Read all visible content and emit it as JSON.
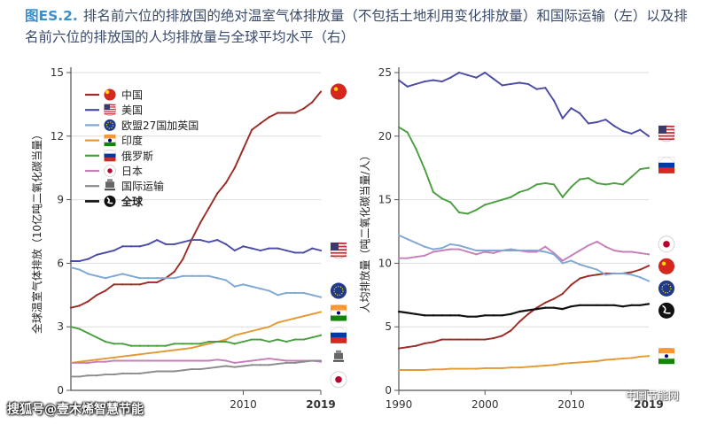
{
  "title": {
    "tag": "图ES.2.",
    "text": "排名前六位的排放国的绝对温室气体排放量（不包括土地利用变化排放量）和国际运输（左）以及排名前六位的排放国的人均排放量与全球平均水平（右）"
  },
  "watermark": {
    "left": "搜狐号@壹木烯智慧节能",
    "right": "中国节能网"
  },
  "colors": {
    "china": "#9b2b24",
    "usa": "#4b4ba6",
    "eu27uk": "#7fa8d4",
    "india": "#e29a35",
    "russia": "#4a9e3f",
    "japan": "#c77fb8",
    "intl": "#8c8c8c",
    "world": "#111111",
    "axis": "#555555",
    "grid": "#dddddd"
  },
  "chart_data": [
    {
      "type": "line",
      "panel": "left",
      "ylabel": "全球温室气体排放（10亿吨二氧化碳当量）",
      "ylim": [
        0,
        15
      ],
      "yticks": [
        "0",
        "3",
        "6",
        "9",
        "12",
        "15"
      ],
      "xlim": [
        1990,
        2019
      ],
      "xticks": [
        "2010",
        "2019"
      ],
      "xtick_values": [
        2010,
        2019
      ],
      "grid": true,
      "legend_position": "top-left",
      "legend": [
        {
          "key": "china",
          "label": "中国",
          "icon": "china-flag-icon"
        },
        {
          "key": "usa",
          "label": "美国",
          "icon": "usa-flag-icon"
        },
        {
          "key": "eu27uk",
          "label": "欧盟27国加英国",
          "icon": "eu-flag-icon"
        },
        {
          "key": "india",
          "label": "印度",
          "icon": "india-flag-icon"
        },
        {
          "key": "russia",
          "label": "俄罗斯",
          "icon": "russia-flag-icon"
        },
        {
          "key": "japan",
          "label": "日本",
          "icon": "japan-flag-icon"
        },
        {
          "key": "intl",
          "label": "国际运输",
          "icon": "ship-icon"
        },
        {
          "key": "world",
          "label": "全球",
          "icon": "globe-icon"
        }
      ],
      "end_icons": [
        {
          "icon": "china-flag-icon",
          "value": 14.1
        },
        {
          "icon": "usa-flag-icon",
          "value": 6.6
        },
        {
          "icon": "eu-flag-icon",
          "value": 4.7
        },
        {
          "icon": "india-flag-icon",
          "value": 3.7
        },
        {
          "icon": "russia-flag-icon",
          "value": 2.6
        },
        {
          "icon": "ship-icon",
          "value": 1.7
        },
        {
          "icon": "japan-flag-icon",
          "value": 0.7
        }
      ],
      "x": [
        1990,
        1991,
        1992,
        1993,
        1994,
        1995,
        1996,
        1997,
        1998,
        1999,
        2000,
        2001,
        2002,
        2003,
        2004,
        2005,
        2006,
        2007,
        2008,
        2009,
        2010,
        2011,
        2012,
        2013,
        2014,
        2015,
        2016,
        2017,
        2018,
        2019
      ],
      "series": [
        {
          "key": "china",
          "name": "中国",
          "values": [
            3.9,
            4.0,
            4.2,
            4.5,
            4.7,
            5.0,
            5.0,
            5.0,
            5.0,
            5.1,
            5.1,
            5.3,
            5.6,
            6.2,
            7.1,
            7.9,
            8.6,
            9.3,
            9.8,
            10.5,
            11.4,
            12.3,
            12.6,
            12.9,
            13.1,
            13.1,
            13.1,
            13.3,
            13.6,
            14.1
          ]
        },
        {
          "key": "usa",
          "name": "美国",
          "values": [
            6.1,
            6.1,
            6.2,
            6.4,
            6.5,
            6.6,
            6.8,
            6.8,
            6.8,
            6.9,
            7.1,
            6.9,
            6.9,
            7.0,
            7.1,
            7.1,
            7.0,
            7.1,
            6.9,
            6.6,
            6.8,
            6.7,
            6.6,
            6.7,
            6.7,
            6.6,
            6.5,
            6.5,
            6.7,
            6.6
          ]
        },
        {
          "key": "eu27uk",
          "name": "欧盟27国加英国",
          "values": [
            5.8,
            5.7,
            5.5,
            5.4,
            5.3,
            5.4,
            5.5,
            5.4,
            5.3,
            5.3,
            5.3,
            5.3,
            5.3,
            5.4,
            5.4,
            5.4,
            5.4,
            5.3,
            5.2,
            4.9,
            5.0,
            4.9,
            4.8,
            4.7,
            4.5,
            4.6,
            4.6,
            4.6,
            4.5,
            4.4
          ]
        },
        {
          "key": "india",
          "name": "印度",
          "values": [
            1.3,
            1.35,
            1.4,
            1.45,
            1.5,
            1.55,
            1.6,
            1.65,
            1.7,
            1.75,
            1.8,
            1.85,
            1.9,
            1.95,
            2.0,
            2.1,
            2.2,
            2.3,
            2.4,
            2.6,
            2.7,
            2.8,
            2.9,
            3.0,
            3.2,
            3.3,
            3.4,
            3.5,
            3.6,
            3.7
          ]
        },
        {
          "key": "russia",
          "name": "俄罗斯",
          "values": [
            3.0,
            2.9,
            2.7,
            2.5,
            2.3,
            2.2,
            2.2,
            2.1,
            2.1,
            2.1,
            2.1,
            2.1,
            2.2,
            2.2,
            2.2,
            2.2,
            2.3,
            2.3,
            2.3,
            2.2,
            2.3,
            2.4,
            2.4,
            2.3,
            2.4,
            2.3,
            2.4,
            2.4,
            2.5,
            2.6
          ]
        },
        {
          "key": "japan",
          "name": "日本",
          "values": [
            1.3,
            1.3,
            1.3,
            1.35,
            1.35,
            1.4,
            1.4,
            1.4,
            1.4,
            1.4,
            1.4,
            1.4,
            1.4,
            1.4,
            1.4,
            1.4,
            1.4,
            1.45,
            1.4,
            1.3,
            1.35,
            1.4,
            1.45,
            1.5,
            1.45,
            1.4,
            1.4,
            1.4,
            1.4,
            1.35
          ]
        },
        {
          "key": "intl",
          "name": "国际运输",
          "values": [
            0.65,
            0.65,
            0.7,
            0.7,
            0.75,
            0.75,
            0.8,
            0.8,
            0.8,
            0.85,
            0.9,
            0.9,
            0.9,
            0.95,
            1.0,
            1.0,
            1.05,
            1.1,
            1.15,
            1.1,
            1.15,
            1.2,
            1.2,
            1.2,
            1.25,
            1.3,
            1.3,
            1.35,
            1.4,
            1.4
          ]
        }
      ]
    },
    {
      "type": "line",
      "panel": "right",
      "ylabel": "人均排放量（吨二氧化碳当量/人）",
      "ylim": [
        0,
        25
      ],
      "yticks": [
        "0",
        "5",
        "10",
        "15",
        "20",
        "25"
      ],
      "xlim": [
        1990,
        2019
      ],
      "xticks": [
        "1990",
        "2000",
        "2010",
        "2019"
      ],
      "xtick_values": [
        1990,
        2000,
        2010,
        2019
      ],
      "grid": true,
      "end_icons": [
        {
          "icon": "usa-flag-icon",
          "value": 20.2
        },
        {
          "icon": "russia-flag-icon",
          "value": 17.7
        },
        {
          "icon": "japan-flag-icon",
          "value": 11.5
        },
        {
          "icon": "china-flag-icon",
          "value": 9.8
        },
        {
          "icon": "eu-flag-icon",
          "value": 8.3
        },
        {
          "icon": "globe-icon",
          "value": 6.4
        },
        {
          "icon": "india-flag-icon",
          "value": 2.7
        }
      ],
      "x": [
        1990,
        1991,
        1992,
        1993,
        1994,
        1995,
        1996,
        1997,
        1998,
        1999,
        2000,
        2001,
        2002,
        2003,
        2004,
        2005,
        2006,
        2007,
        2008,
        2009,
        2010,
        2011,
        2012,
        2013,
        2014,
        2015,
        2016,
        2017,
        2018,
        2019
      ],
      "series": [
        {
          "key": "usa",
          "name": "美国",
          "values": [
            24.4,
            23.9,
            24.1,
            24.3,
            24.4,
            24.3,
            24.6,
            25.0,
            24.8,
            24.6,
            25.0,
            24.5,
            24.0,
            24.1,
            24.2,
            24.1,
            23.7,
            23.8,
            22.8,
            21.4,
            22.2,
            21.8,
            21.0,
            21.1,
            21.3,
            20.8,
            20.4,
            20.2,
            20.5,
            20.0
          ]
        },
        {
          "key": "russia",
          "name": "俄罗斯",
          "values": [
            20.7,
            20.3,
            19.0,
            17.4,
            15.6,
            15.1,
            14.8,
            14.0,
            13.9,
            14.2,
            14.6,
            14.8,
            15.0,
            15.2,
            15.6,
            15.8,
            16.2,
            16.3,
            16.2,
            15.2,
            16.0,
            16.6,
            16.7,
            16.3,
            16.2,
            16.3,
            16.2,
            16.8,
            17.4,
            17.5
          ]
        },
        {
          "key": "japan",
          "name": "日本",
          "values": [
            10.4,
            10.4,
            10.5,
            10.6,
            10.9,
            11.0,
            11.1,
            11.1,
            10.9,
            10.7,
            10.9,
            10.8,
            11.0,
            11.0,
            11.0,
            10.9,
            10.9,
            11.3,
            10.8,
            10.2,
            10.6,
            11.0,
            11.4,
            11.7,
            11.3,
            11.0,
            10.9,
            10.9,
            10.8,
            10.7
          ]
        },
        {
          "key": "china",
          "name": "中国",
          "values": [
            3.3,
            3.4,
            3.5,
            3.7,
            3.8,
            4.0,
            4.0,
            4.0,
            4.0,
            4.0,
            4.0,
            4.1,
            4.3,
            4.7,
            5.4,
            6.0,
            6.5,
            6.9,
            7.2,
            7.6,
            8.3,
            8.8,
            9.0,
            9.1,
            9.2,
            9.2,
            9.2,
            9.3,
            9.5,
            9.8
          ]
        },
        {
          "key": "eu27uk",
          "name": "欧盟27国加英国",
          "values": [
            12.2,
            11.9,
            11.6,
            11.3,
            11.1,
            11.2,
            11.5,
            11.4,
            11.2,
            11.0,
            11.0,
            11.0,
            11.0,
            11.1,
            11.0,
            11.0,
            11.0,
            10.9,
            10.7,
            10.0,
            10.2,
            9.9,
            9.7,
            9.5,
            9.1,
            9.2,
            9.2,
            9.1,
            8.9,
            8.6
          ]
        },
        {
          "key": "world",
          "name": "全球",
          "values": [
            6.2,
            6.1,
            6.0,
            5.9,
            5.9,
            5.9,
            5.9,
            5.9,
            5.8,
            5.8,
            5.9,
            5.9,
            5.9,
            6.0,
            6.2,
            6.3,
            6.4,
            6.5,
            6.5,
            6.4,
            6.6,
            6.7,
            6.7,
            6.7,
            6.7,
            6.7,
            6.6,
            6.7,
            6.7,
            6.8
          ]
        },
        {
          "key": "india",
          "name": "印度",
          "values": [
            1.6,
            1.6,
            1.6,
            1.6,
            1.65,
            1.65,
            1.7,
            1.7,
            1.7,
            1.7,
            1.75,
            1.75,
            1.75,
            1.8,
            1.8,
            1.85,
            1.9,
            1.95,
            2.0,
            2.1,
            2.15,
            2.2,
            2.25,
            2.3,
            2.4,
            2.45,
            2.5,
            2.55,
            2.65,
            2.7
          ]
        }
      ]
    }
  ]
}
